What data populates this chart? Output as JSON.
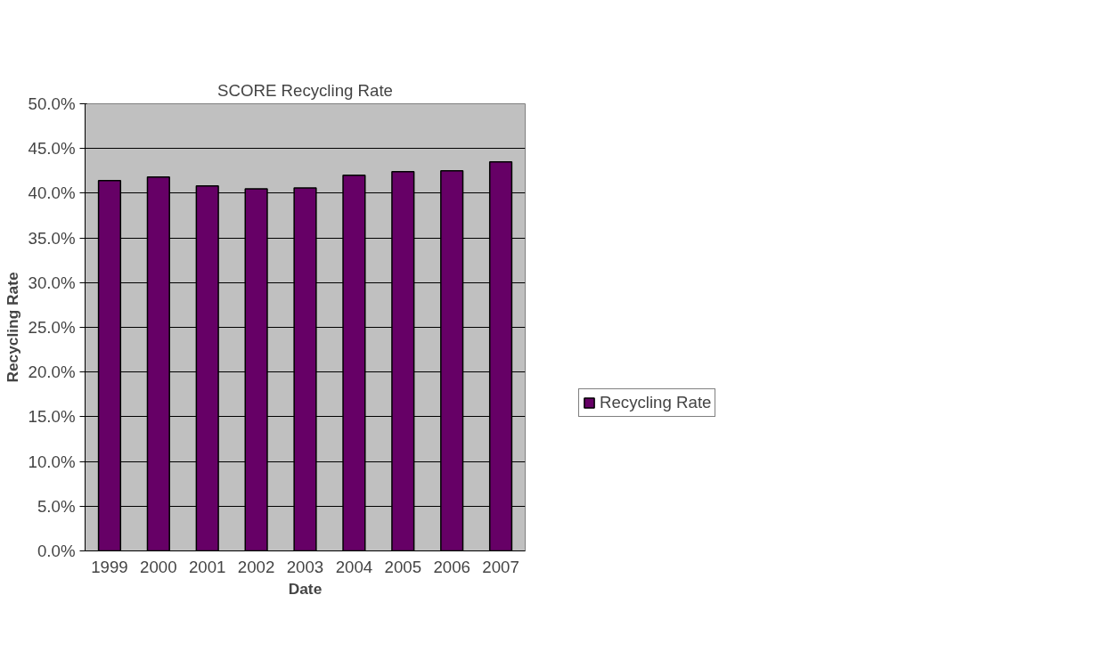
{
  "chart_data": {
    "type": "bar",
    "title": "SCORE Recycling Rate",
    "xlabel": "Date",
    "ylabel": "Recycling Rate",
    "categories": [
      "1999",
      "2000",
      "2001",
      "2002",
      "2003",
      "2004",
      "2005",
      "2006",
      "2007"
    ],
    "series": [
      {
        "name": "Recycling Rate",
        "color": "#660066",
        "values": [
          41.4,
          41.8,
          40.8,
          40.5,
          40.6,
          42.0,
          42.4,
          42.5,
          43.5
        ]
      }
    ],
    "ylim": [
      0,
      50
    ],
    "yticks": [
      {
        "value": 0,
        "label": "0.0%"
      },
      {
        "value": 5,
        "label": "5.0%"
      },
      {
        "value": 10,
        "label": "10.0%"
      },
      {
        "value": 15,
        "label": "15.0%"
      },
      {
        "value": 20,
        "label": "20.0%"
      },
      {
        "value": 25,
        "label": "25.0%"
      },
      {
        "value": 30,
        "label": "30.0%"
      },
      {
        "value": 35,
        "label": "35.0%"
      },
      {
        "value": 40,
        "label": "40.0%"
      },
      {
        "value": 45,
        "label": "45.0%"
      },
      {
        "value": 50,
        "label": "50.0%"
      }
    ],
    "grid": "y",
    "legend": "right"
  }
}
